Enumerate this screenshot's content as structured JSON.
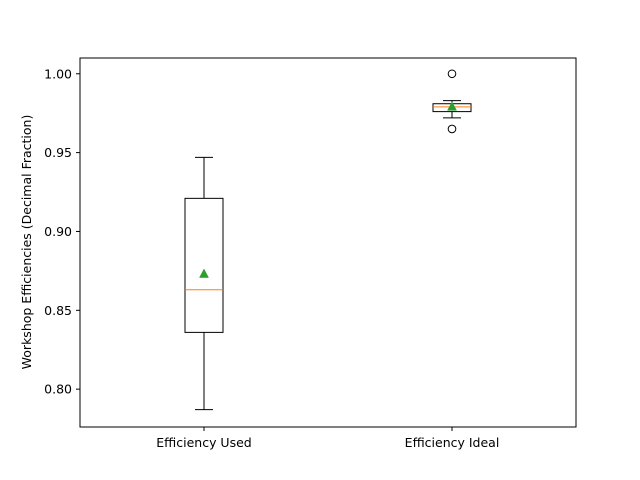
{
  "chart_data": {
    "type": "box",
    "title": "",
    "xlabel": "",
    "ylabel": "Workshop Efficiencies (Decimal Fraction)",
    "ylim": [
      0.776,
      1.01
    ],
    "yticks": [
      0.8,
      0.85,
      0.9,
      0.95,
      1.0
    ],
    "ytick_labels": [
      "0.80",
      "0.85",
      "0.90",
      "0.95",
      "1.00"
    ],
    "grid": false,
    "categories": [
      "Efficiency Used",
      "Efficiency Ideal"
    ],
    "boxes": [
      {
        "whisker_low": 0.787,
        "q1": 0.836,
        "median": 0.863,
        "q3": 0.921,
        "whisker_high": 0.947,
        "mean": 0.873,
        "outliers": []
      },
      {
        "whisker_low": 0.972,
        "q1": 0.976,
        "median": 0.979,
        "q3": 0.981,
        "whisker_high": 0.983,
        "mean": 0.979,
        "outliers": [
          0.965,
          1.0
        ]
      }
    ],
    "colors": {
      "box": "#000000",
      "median": "#ff7f0e",
      "mean": "#2ca02c",
      "outlier_edge": "#000000"
    }
  }
}
